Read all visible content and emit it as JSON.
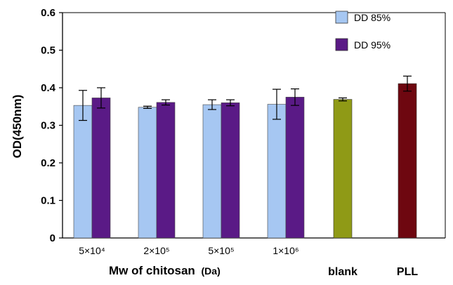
{
  "chart_data": {
    "type": "bar",
    "ylabel": "OD(450nm)",
    "xlabel_group": "Mw of chitosan",
    "xlabel_unit": "(Da)",
    "ylim": [
      0,
      0.6
    ],
    "yticks": [
      "0",
      "0.1",
      "0.2",
      "0.3",
      "0.4",
      "0.5",
      "0.6"
    ],
    "legend_position": "top-right",
    "grid": false,
    "colors": {
      "dd85": "#a6c7f2",
      "dd95": "#5a1a86",
      "blank": "#8f9a16",
      "pll": "#6e0710"
    },
    "categories": [
      "5×10⁴",
      "2×10⁵",
      "5×10⁵",
      "1×10⁶",
      "blank",
      "PLL"
    ],
    "series": [
      {
        "name": "DD 85%",
        "values": [
          0.353,
          0.348,
          0.355,
          0.356,
          null,
          null
        ],
        "errors": [
          0.04,
          0.003,
          0.013,
          0.04,
          null,
          null
        ]
      },
      {
        "name": "DD 95%",
        "values": [
          0.373,
          0.361,
          0.36,
          0.375,
          null,
          null
        ],
        "errors": [
          0.027,
          0.007,
          0.008,
          0.022,
          null,
          null
        ]
      }
    ],
    "single_bars": [
      {
        "label": "blank",
        "value": 0.369,
        "error": 0.004
      },
      {
        "label": "PLL",
        "value": 0.411,
        "error": 0.02
      }
    ]
  }
}
